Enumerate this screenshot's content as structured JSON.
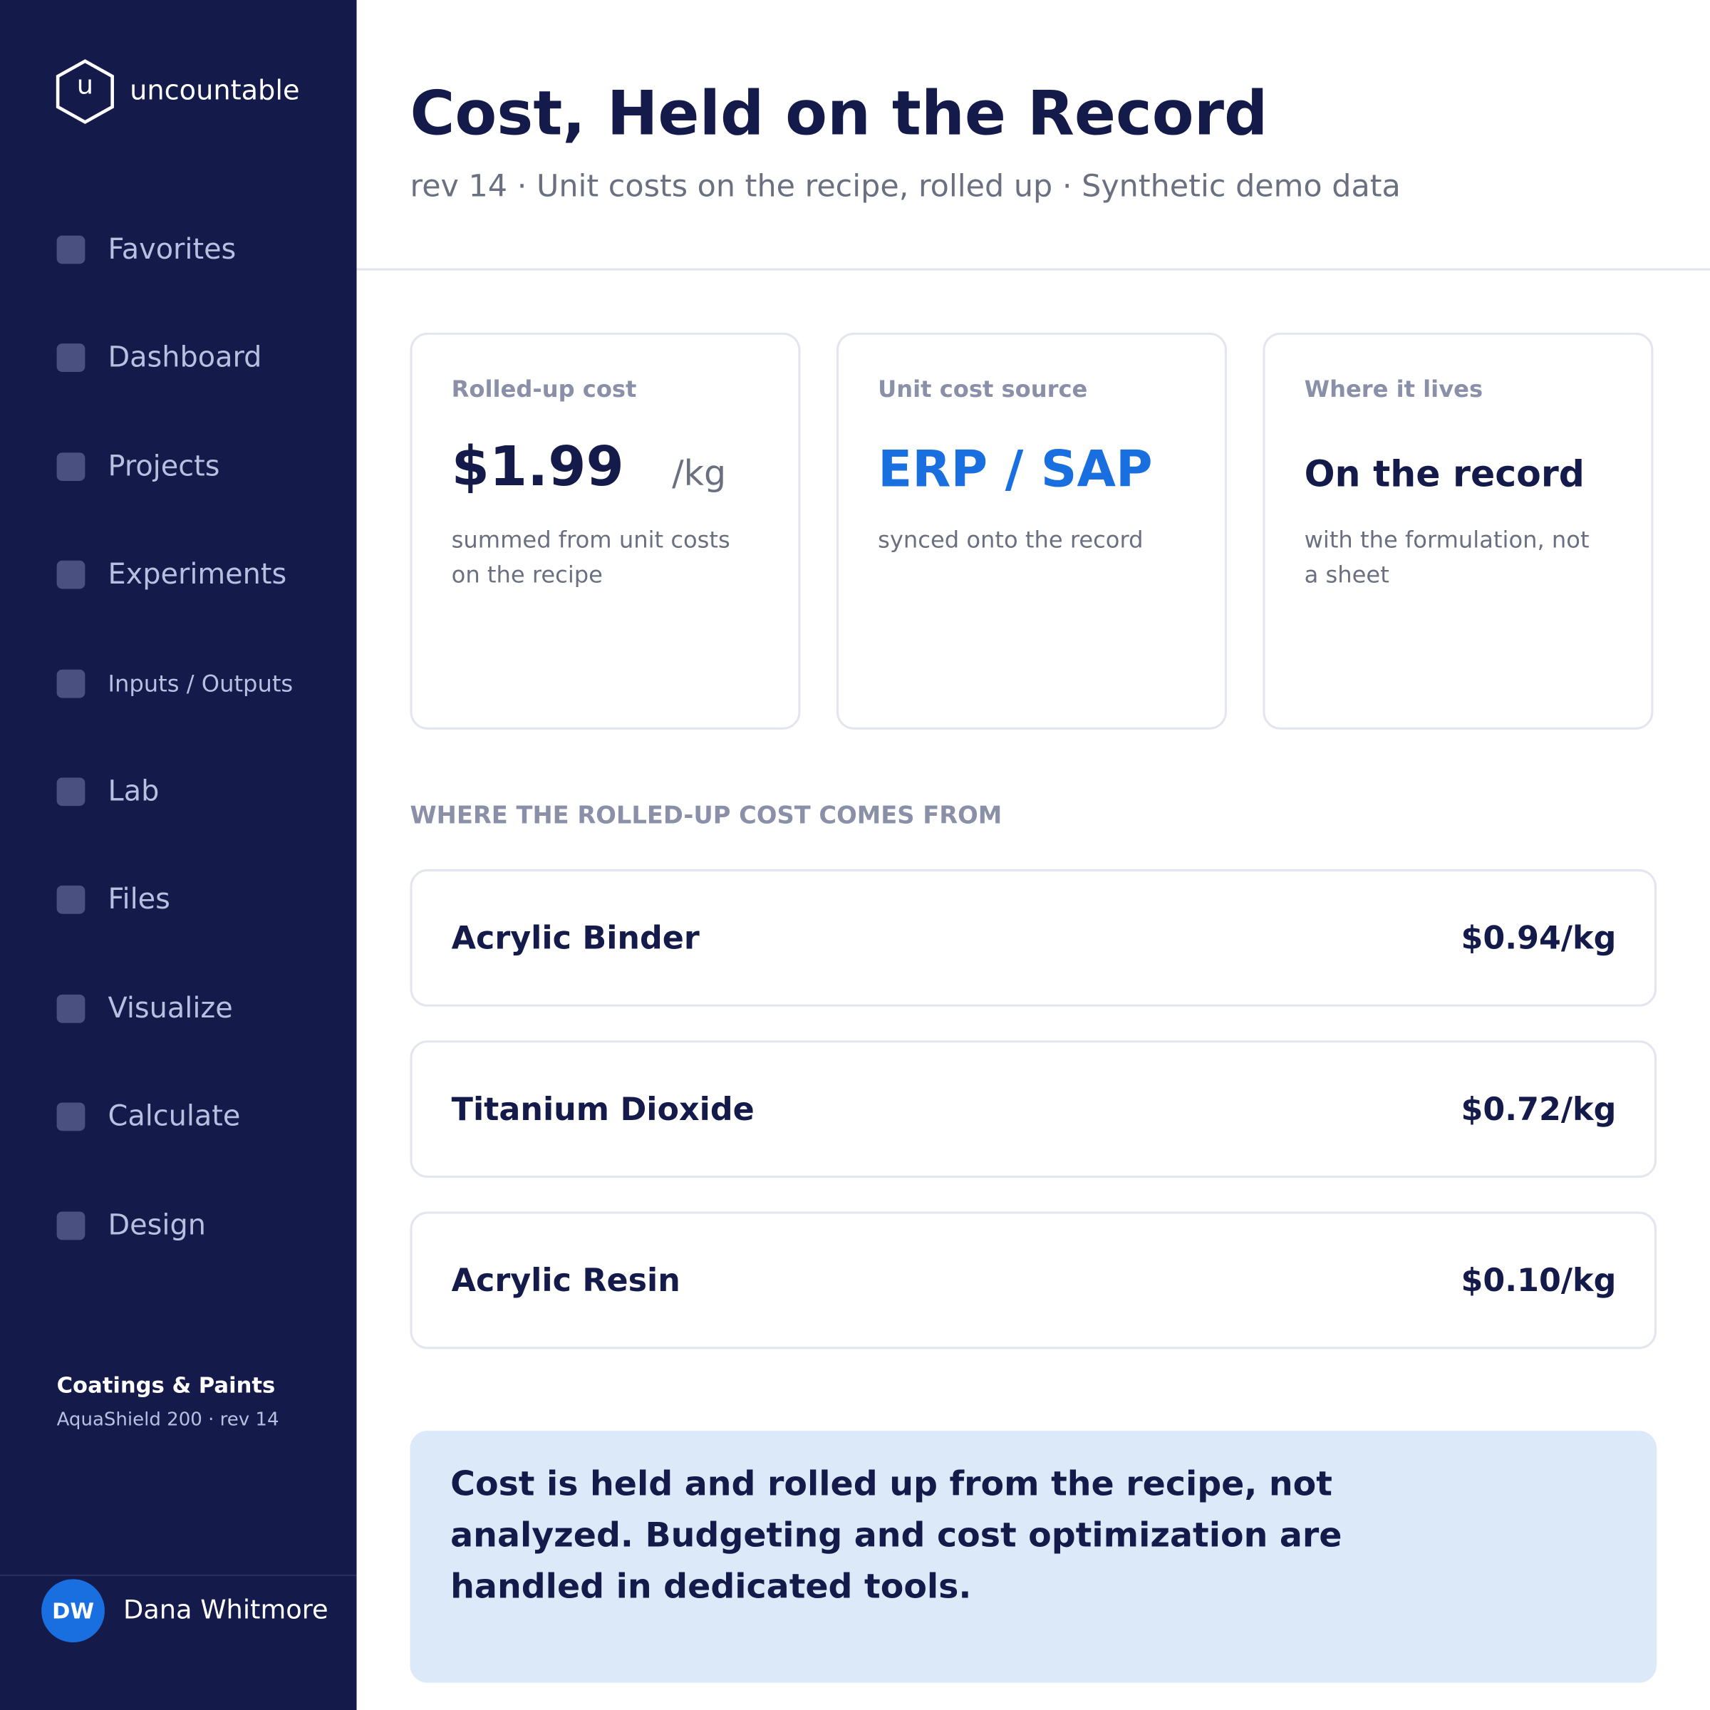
{
  "sidebar": {
    "logo_letter": "u",
    "brand": "uncountable",
    "nav": [
      "Favorites",
      "Dashboard",
      "Projects",
      "Experiments",
      "Inputs / Outputs",
      "Lab",
      "Files",
      "Visualize",
      "Calculate",
      "Design"
    ],
    "workspace": {
      "title": "Coatings & Paints",
      "subtitle": "AquaShield 200 · rev 14"
    },
    "user": {
      "initials": "DW",
      "name": "Dana Whitmore"
    }
  },
  "header": {
    "title": "Cost, Held on the Record",
    "subtitle": "rev 14 · Unit costs on the recipe, rolled up · Synthetic demo data"
  },
  "cards": [
    {
      "label": "Rolled-up cost",
      "value": "$1.99",
      "unit": "/kg",
      "note": "summed from unit costs on the recipe"
    },
    {
      "label": "Unit cost source",
      "value": "ERP / SAP",
      "note": "synced onto the record"
    },
    {
      "label": "Where it lives",
      "value": "On the record",
      "note": "with the formulation, not a sheet"
    }
  ],
  "section_title": "WHERE THE ROLLED-UP COST COMES FROM",
  "items": [
    {
      "name": "Acrylic Binder",
      "cost": "$0.94/kg"
    },
    {
      "name": "Titanium Dioxide",
      "cost": "$0.72/kg"
    },
    {
      "name": "Acrylic Resin",
      "cost": "$0.10/kg"
    }
  ],
  "callout": "Cost is held and rolled up from the recipe, not analyzed. Budgeting and cost optimization are handled in dedicated tools."
}
